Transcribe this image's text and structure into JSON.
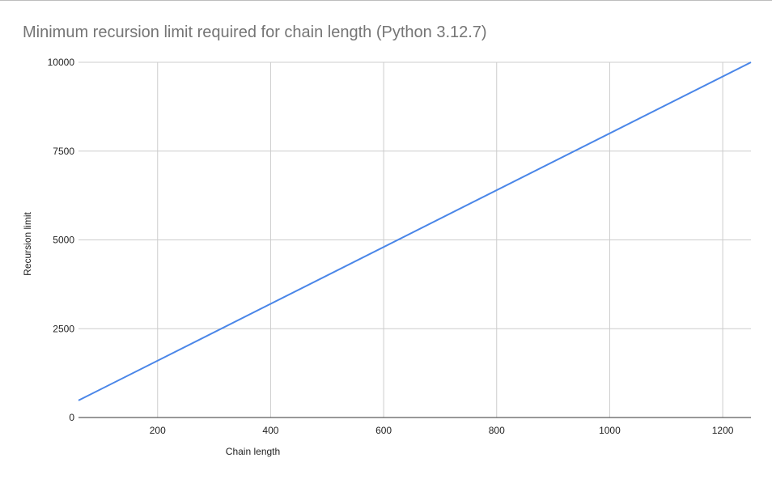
{
  "chart_data": {
    "type": "line",
    "title": "Minimum recursion limit required for chain length (Python 3.12.7)",
    "xlabel": "Chain length",
    "ylabel": "Recursion limit",
    "xlim": [
      60,
      1250
    ],
    "ylim": [
      0,
      10000
    ],
    "x_ticks": [
      200,
      400,
      600,
      800,
      1000,
      1200
    ],
    "y_ticks": [
      0,
      2500,
      5000,
      7500,
      10000
    ],
    "grid": true,
    "legend": "none",
    "series": [
      {
        "color": "#4a86e8",
        "points": [
          {
            "x": 60,
            "y": 480
          },
          {
            "x": 1250,
            "y": 10000
          }
        ]
      }
    ]
  }
}
